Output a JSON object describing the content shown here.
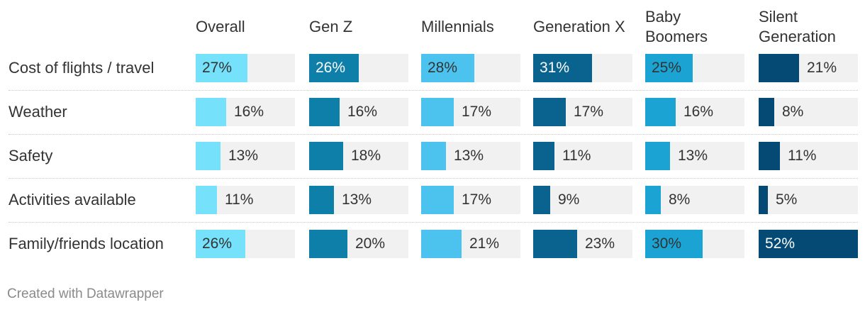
{
  "chart_data": {
    "type": "bar",
    "title": "",
    "columns": [
      "Overall",
      "Gen Z",
      "Millennials",
      "Generation X",
      "Baby\nBoomers",
      "Silent\nGeneration"
    ],
    "column_colors": [
      "#76e1fa",
      "#0e7fa8",
      "#4cc3ee",
      "#0a638f",
      "#1ba3d4",
      "#044a74"
    ],
    "categories": [
      "Cost of flights / travel",
      "Weather",
      "Safety",
      "Activities available",
      "Family/friends location"
    ],
    "series": [
      {
        "name": "Overall",
        "values": [
          27,
          16,
          13,
          11,
          26
        ]
      },
      {
        "name": "Gen Z",
        "values": [
          26,
          16,
          18,
          13,
          20
        ]
      },
      {
        "name": "Millennials",
        "values": [
          28,
          17,
          13,
          17,
          21
        ]
      },
      {
        "name": "Generation X",
        "values": [
          31,
          17,
          11,
          9,
          23
        ]
      },
      {
        "name": "Baby Boomers",
        "values": [
          25,
          16,
          13,
          8,
          30
        ]
      },
      {
        "name": "Silent Generation",
        "values": [
          21,
          8,
          11,
          5,
          52
        ]
      }
    ],
    "value_suffix": "%",
    "xlim": [
      0,
      52
    ]
  },
  "footer": {
    "credit": "Created with Datawrapper"
  }
}
